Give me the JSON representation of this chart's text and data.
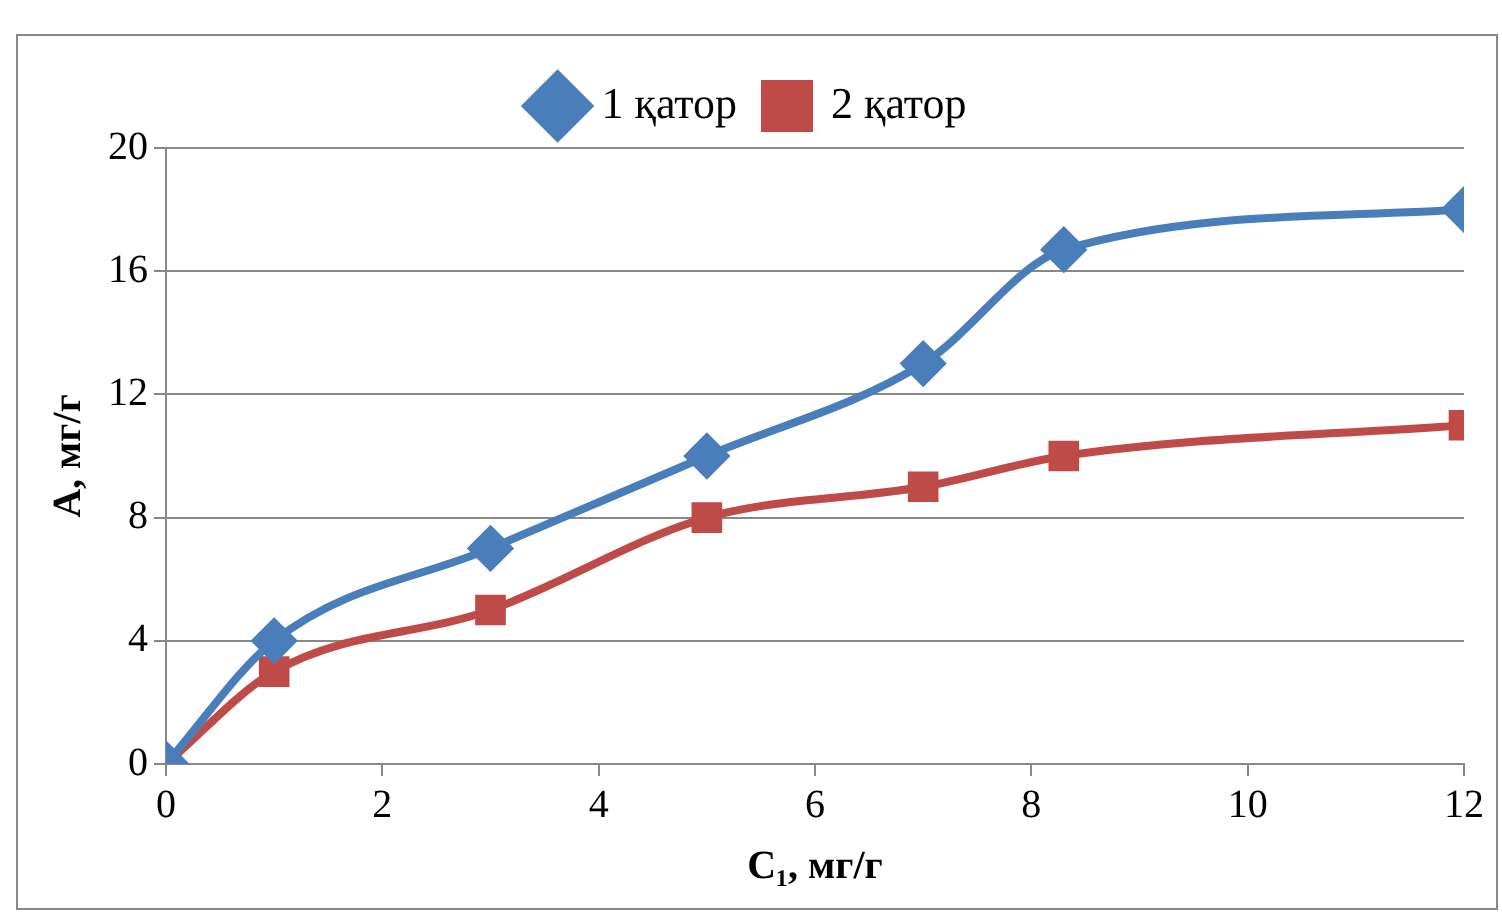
{
  "chart_data": {
    "type": "line",
    "xlabel": "C₁, мг/г",
    "ylabel": "A, мг/г",
    "x": [
      0,
      1,
      3,
      5,
      7,
      8.3,
      12
    ],
    "series": [
      {
        "name": "1 қатор",
        "color": "#4a7ebb",
        "marker": "diamond",
        "values": [
          0,
          4,
          7,
          10,
          13,
          16.7,
          18
        ]
      },
      {
        "name": "2 қатор",
        "color": "#be4b48",
        "marker": "square",
        "values": [
          0,
          3,
          5,
          8,
          9,
          10,
          11
        ]
      }
    ],
    "xlim": [
      0,
      12
    ],
    "xticks": [
      0,
      2,
      4,
      6,
      8,
      10,
      12
    ],
    "ylim": [
      0,
      20
    ],
    "yticks": [
      0,
      4,
      8,
      12,
      16,
      20
    ],
    "grid": "y",
    "legend": "top"
  }
}
